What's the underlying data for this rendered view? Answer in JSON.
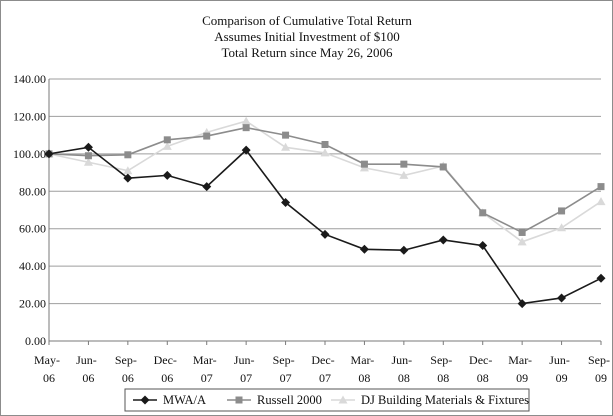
{
  "chart_data": {
    "type": "line",
    "title": [
      "Comparison of Cumulative Total Return",
      "Assumes Initial Investment of $100",
      "Total Return since May 26, 2006"
    ],
    "categories": [
      [
        "May-",
        "06"
      ],
      [
        "Jun-",
        "06"
      ],
      [
        "Sep-",
        "06"
      ],
      [
        "Dec-",
        "06"
      ],
      [
        "Mar-",
        "07"
      ],
      [
        "Jun-",
        "07"
      ],
      [
        "Sep-",
        "07"
      ],
      [
        "Dec-",
        "07"
      ],
      [
        "Mar-",
        "08"
      ],
      [
        "Jun-",
        "08"
      ],
      [
        "Sep-",
        "08"
      ],
      [
        "Dec-",
        "08"
      ],
      [
        "Mar-",
        "09"
      ],
      [
        "Jun-",
        "09"
      ],
      [
        "Sep-",
        "09"
      ]
    ],
    "yticks": [
      "0.00",
      "20.00",
      "40.00",
      "60.00",
      "80.00",
      "100.00",
      "120.00",
      "140.00"
    ],
    "ylim": [
      0,
      140
    ],
    "grid": "horizontal",
    "legend_position": "bottom",
    "series": [
      {
        "name": "MWA/A",
        "color": "#1a1a1a",
        "marker": "diamond",
        "values": [
          100.0,
          103.5,
          87.0,
          88.5,
          82.5,
          102.0,
          74.0,
          57.0,
          49.0,
          48.5,
          54.0,
          51.0,
          20.0,
          23.0,
          33.5
        ]
      },
      {
        "name": "Russell 2000",
        "color": "#8c8c8c",
        "marker": "square",
        "values": [
          100.0,
          99.0,
          99.5,
          107.5,
          109.5,
          114.0,
          110.0,
          105.0,
          94.5,
          94.5,
          93.0,
          68.5,
          58.0,
          69.5,
          82.5
        ]
      },
      {
        "name": "DJ Building Materials & Fixtures",
        "color": "#d9d9d9",
        "marker": "triangle",
        "values": [
          100.0,
          95.5,
          91.0,
          104.0,
          111.5,
          117.5,
          103.5,
          100.5,
          92.5,
          88.5,
          93.5,
          68.5,
          53.0,
          60.5,
          74.5
        ]
      }
    ]
  }
}
